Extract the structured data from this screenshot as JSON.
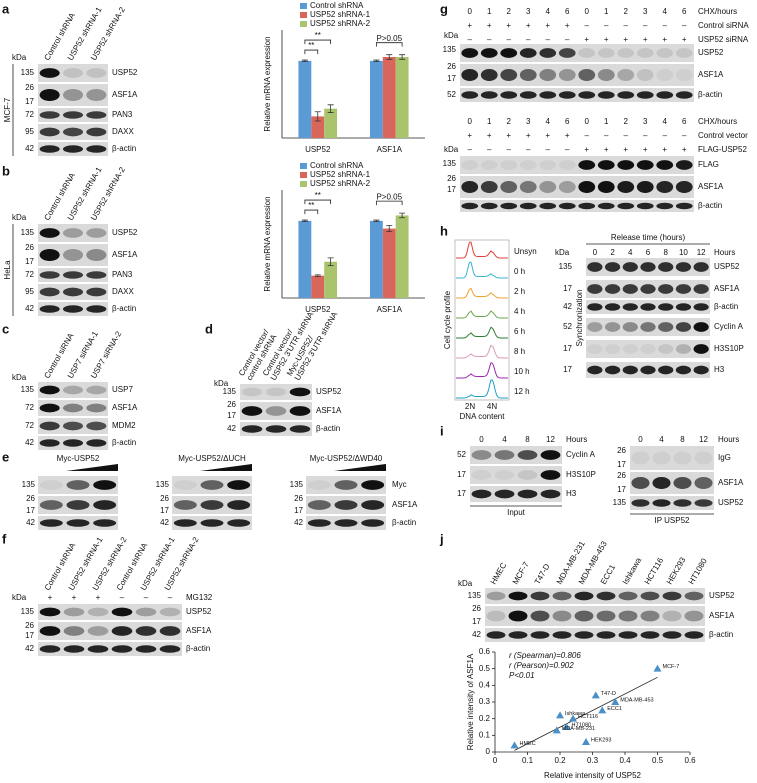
{
  "chart_data": [
    {
      "type": "bar",
      "ylabel": "Relative mRNA expression",
      "categories": [
        "USP52",
        "ASF1A"
      ],
      "series": [
        {
          "name": "Control shRNA",
          "color": "#5b9bd5",
          "values": [
            1.0,
            1.0
          ],
          "errors": [
            0.01,
            0.01
          ]
        },
        {
          "name": "USP52 shRNA-1",
          "color": "#d9665b",
          "values": [
            0.28,
            1.05
          ],
          "errors": [
            0.06,
            0.03
          ]
        },
        {
          "name": "USP52 shRNA-2",
          "color": "#a9c46c",
          "values": [
            0.38,
            1.05
          ],
          "errors": [
            0.05,
            0.03
          ]
        }
      ],
      "ylim": [
        0,
        1.4
      ],
      "annotations": [
        "**",
        "**",
        "P>0.05"
      ]
    },
    {
      "type": "bar",
      "ylabel": "Relative mRNA expression",
      "categories": [
        "USP52",
        "ASF1A"
      ],
      "series": [
        {
          "name": "Control shRNA",
          "color": "#5b9bd5",
          "values": [
            1.0,
            1.0
          ],
          "errors": [
            0.01,
            0.01
          ]
        },
        {
          "name": "USP52 shRNA-1",
          "color": "#d9665b",
          "values": [
            0.29,
            0.9
          ],
          "errors": [
            0.01,
            0.04
          ]
        },
        {
          "name": "USP52 shRNA-2",
          "color": "#a9c46c",
          "values": [
            0.47,
            1.07
          ],
          "errors": [
            0.05,
            0.03
          ]
        }
      ],
      "ylim": [
        0,
        1.4
      ],
      "annotations": [
        "**",
        "**",
        "P>0.05"
      ]
    },
    {
      "type": "scatter",
      "xlabel": "Relative intensity of USP52",
      "ylabel": "Relative intensity of ASF1A",
      "color": "#4a90c8",
      "labels": [
        "HMEC",
        "MCF-7",
        "T47-D",
        "MDA-MB-453",
        "ECC1",
        "Ishkawa",
        "HCT116",
        "HT1080",
        "MDA-MB-231",
        "HEK293"
      ],
      "x": [
        0.06,
        0.5,
        0.31,
        0.37,
        0.33,
        0.2,
        0.24,
        0.22,
        0.19,
        0.28
      ],
      "values": [
        0.04,
        0.5,
        0.34,
        0.3,
        0.25,
        0.22,
        0.2,
        0.15,
        0.13,
        0.06
      ],
      "xlim": [
        0,
        0.6
      ],
      "ylim": [
        0,
        0.6
      ],
      "xticks": [
        0,
        0.1,
        0.2,
        0.3,
        0.4,
        0.5,
        0.6
      ],
      "yticks": [
        0,
        0.1,
        0.2,
        0.3,
        0.4,
        0.5,
        0.6
      ],
      "annotations": [
        "r (Spearman)=0.806",
        "r (Pearson)=0.902",
        "P<0.01"
      ]
    }
  ],
  "panels": {
    "a": {
      "label": "a",
      "kda": "kDa",
      "cell_line": "MCF-7",
      "lanes": [
        "Control shRNA",
        "USP52 shRNA-1",
        "USP52 shRNA-2"
      ],
      "markers": [
        135,
        26,
        17,
        72,
        95,
        42
      ],
      "proteins": [
        "USP52",
        "ASF1A",
        "PAN3",
        "DAXX",
        "β-actin"
      ]
    },
    "b": {
      "label": "b",
      "kda": "kDa",
      "cell_line": "HeLa",
      "lanes": [
        "Control shRNA",
        "USP52 shRNA-1",
        "USP52 shRNA-2"
      ],
      "markers": [
        135,
        26,
        17,
        72,
        95,
        42
      ],
      "proteins": [
        "USP52",
        "ASF1A",
        "PAN3",
        "DAXX",
        "β-actin"
      ]
    },
    "c": {
      "label": "c",
      "kda": "kDa",
      "lanes": [
        "Control siRNA",
        "USP7 siRNA-1",
        "USP7 siRNA-2"
      ],
      "markers": [
        135,
        72,
        72,
        42
      ],
      "proteins": [
        "USP7",
        "ASF1A",
        "MDM2",
        "β-actin"
      ]
    },
    "d": {
      "label": "d",
      "kda": "kDa",
      "lanes": [
        [
          "Control vector/",
          "control shRNA"
        ],
        [
          "Control vector/",
          "USP52 3'UTR shRNA"
        ],
        [
          "Myc-USP52/",
          "USP52 3'UTR shRNA"
        ]
      ],
      "markers": [
        135,
        26,
        17,
        42
      ],
      "proteins": [
        "USP52",
        "ASF1A",
        "β-actin"
      ]
    },
    "e": {
      "label": "e",
      "groups": [
        {
          "title": "Myc-USP52",
          "markers": [
            135,
            26,
            17,
            42
          ]
        },
        {
          "title": "Myc-USP52/ΔUCH",
          "markers": [
            135,
            26,
            17,
            42
          ]
        },
        {
          "title": "Myc-USP52/ΔWD40",
          "markers": [
            135,
            26,
            17,
            42
          ]
        }
      ],
      "proteins": [
        "Myc",
        "ASF1A",
        "β-actin"
      ]
    },
    "f": {
      "label": "f",
      "kda": "kDa",
      "lanes": [
        "Control shRNA",
        "USP52 shRNA-1",
        "USP52 shRNA-2",
        "Control shRNA",
        "USP52 shRNA-1",
        "USP52 shRNA-2"
      ],
      "treatment": "MG132",
      "treatment_signs": [
        "+",
        "+",
        "+",
        "–",
        "–",
        "–"
      ],
      "markers": [
        135,
        26,
        17,
        42
      ],
      "proteins": [
        "USP52",
        "ASF1A",
        "β-actin"
      ]
    },
    "g": {
      "label": "g",
      "top": {
        "time_label": "CHX/hours",
        "times": [
          0,
          1,
          2,
          3,
          4,
          6,
          0,
          1,
          2,
          3,
          4,
          6
        ],
        "conditions": [
          {
            "name": "Control siRNA",
            "signs": [
              "+",
              "+",
              "+",
              "+",
              "+",
              "+",
              "–",
              "–",
              "–",
              "–",
              "–",
              "–"
            ]
          },
          {
            "name": "USP52 siRNA",
            "signs": [
              "–",
              "–",
              "–",
              "–",
              "–",
              "–",
              "+",
              "+",
              "+",
              "+",
              "+",
              "+"
            ]
          }
        ],
        "kda": "kDa",
        "markers": [
          135,
          26,
          17,
          52
        ],
        "proteins": [
          "USP52",
          "ASF1A",
          "β-actin"
        ]
      },
      "bottom": {
        "time_label": "CHX/hours",
        "times": [
          0,
          1,
          2,
          3,
          4,
          6,
          0,
          1,
          2,
          3,
          4,
          6
        ],
        "conditions": [
          {
            "name": "Control vector",
            "signs": [
              "+",
              "+",
              "+",
              "+",
              "+",
              "+",
              "–",
              "–",
              "–",
              "–",
              "–",
              "–"
            ]
          },
          {
            "name": "FLAG-USP52",
            "signs": [
              "–",
              "–",
              "–",
              "–",
              "–",
              "–",
              "+",
              "+",
              "+",
              "+",
              "+",
              "+"
            ]
          }
        ],
        "kda": "kDa",
        "markers": [
          135,
          26,
          17
        ],
        "proteins": [
          "FLAG",
          "ASF1A",
          "β-actin"
        ]
      }
    },
    "h": {
      "label": "h",
      "flow": {
        "ylabel": "Cell cycle profile",
        "samples": [
          "Unsyn",
          "0 h",
          "2 h",
          "4 h",
          "6 h",
          "8 h",
          "10 h",
          "12 h"
        ],
        "peaks": [
          "2N",
          "4N"
        ],
        "xlabel": "DNA content"
      },
      "blot": {
        "header": "Release time (hours)",
        "times": [
          0,
          2,
          4,
          6,
          8,
          10,
          12
        ],
        "time_unit": "Hours",
        "kda": "kDa",
        "side_label": "Synchronization",
        "markers": [
          135,
          17,
          42,
          52,
          17,
          17
        ],
        "proteins": [
          "USP52",
          "ASF1A",
          "β-actin",
          "Cyclin A",
          "H3S10P",
          "H3"
        ]
      }
    },
    "i": {
      "label": "i",
      "input": {
        "times": [
          0,
          4,
          8,
          12
        ],
        "time_unit": "Hours",
        "markers": [
          52,
          17,
          17
        ],
        "proteins": [
          "Cyclin A",
          "H3S10P",
          "H3"
        ],
        "caption": "Input"
      },
      "ip": {
        "times": [
          0,
          4,
          8,
          12
        ],
        "time_unit": "Hours",
        "markers": [
          26,
          17,
          26,
          17,
          135
        ],
        "proteins": [
          "IgG",
          "ASF1A",
          "USP52"
        ],
        "caption": "IP USP52"
      }
    },
    "j": {
      "label": "j",
      "kda": "kDa",
      "lanes": [
        "HMEC",
        "MCF-7",
        "T47-D",
        "MDA-MB-231",
        "MDA-MB-453",
        "ECC1",
        "Ishkawa",
        "HCT116",
        "HEK293",
        "HT1080"
      ],
      "markers": [
        135,
        26,
        17,
        42
      ],
      "proteins": [
        "USP52",
        "ASF1A",
        "β-actin"
      ]
    }
  }
}
